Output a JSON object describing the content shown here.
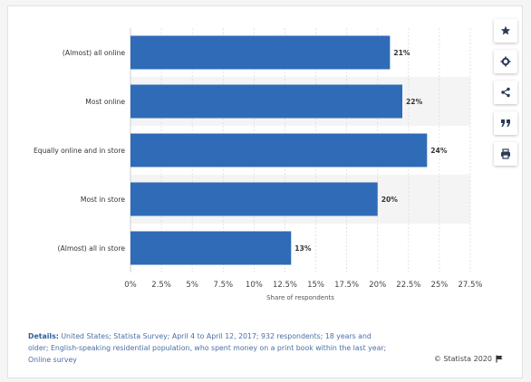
{
  "chart_data": {
    "type": "bar",
    "orientation": "horizontal",
    "categories": [
      "(Almost) all online",
      "Most online",
      "Equally online and in store",
      "Most in store",
      "(Almost) all in store"
    ],
    "values": [
      21,
      22,
      24,
      20,
      13
    ],
    "value_labels": [
      "21%",
      "22%",
      "24%",
      "20%",
      "13%"
    ],
    "xlabel": "Share of respondents",
    "xlim": [
      0,
      27.5
    ],
    "x_ticks": [
      "0%",
      "2.5%",
      "5%",
      "7.5%",
      "10%",
      "12.5%",
      "15%",
      "17.5%",
      "20%",
      "22.5%",
      "25%",
      "27.5%"
    ],
    "bar_color": "#2f6bb7",
    "grid": true
  },
  "details": {
    "label": "Details:",
    "text": "United States; Statista Survey; April 4 to April 12, 2017; 932 respondents; 18 years and older; English-speaking residential population, who spent money on a print book within the last year; Online survey"
  },
  "credit": "© Statista 2020",
  "toolbar": {
    "icons": [
      "star-icon",
      "gear-icon",
      "share-icon",
      "quote-icon",
      "print-icon"
    ]
  }
}
